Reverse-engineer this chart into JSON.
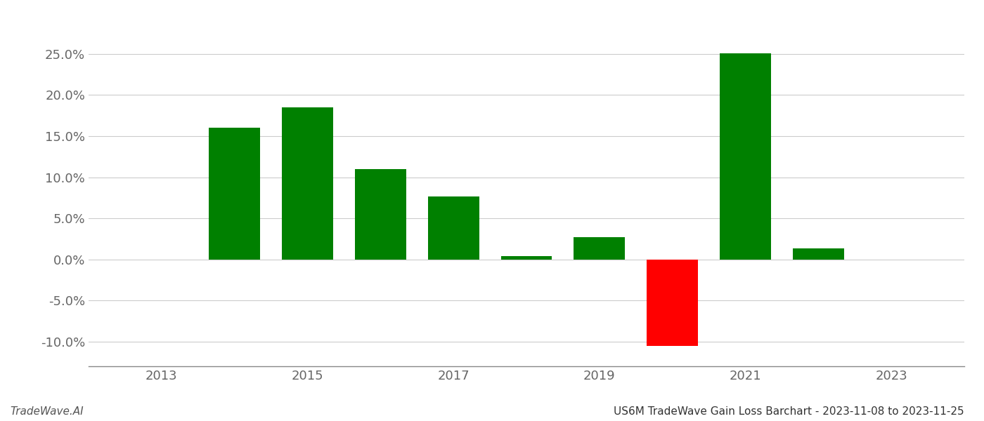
{
  "years": [
    2014,
    2015,
    2016,
    2017,
    2018,
    2019,
    2020,
    2021,
    2022
  ],
  "values": [
    0.16,
    0.185,
    0.11,
    0.077,
    0.004,
    0.027,
    -0.105,
    0.251,
    0.013
  ],
  "colors": [
    "#008000",
    "#008000",
    "#008000",
    "#008000",
    "#008000",
    "#008000",
    "#ff0000",
    "#008000",
    "#008000"
  ],
  "title": "US6M TradeWave Gain Loss Barchart - 2023-11-08 to 2023-11-25",
  "watermark": "TradeWave.AI",
  "xlim": [
    2012.0,
    2024.0
  ],
  "ylim": [
    -0.13,
    0.29
  ],
  "xticks": [
    2013,
    2015,
    2017,
    2019,
    2021,
    2023
  ],
  "yticks": [
    -0.1,
    -0.05,
    0.0,
    0.05,
    0.1,
    0.15,
    0.2,
    0.25
  ],
  "bar_width": 0.7,
  "figsize": [
    14.0,
    6.0
  ],
  "dpi": 100,
  "grid_color": "#cccccc",
  "background_color": "#ffffff",
  "spine_color": "#888888",
  "tick_label_color": "#666666",
  "title_color": "#333333",
  "watermark_color": "#555555",
  "title_fontsize": 11,
  "watermark_fontsize": 11,
  "tick_fontsize": 13
}
